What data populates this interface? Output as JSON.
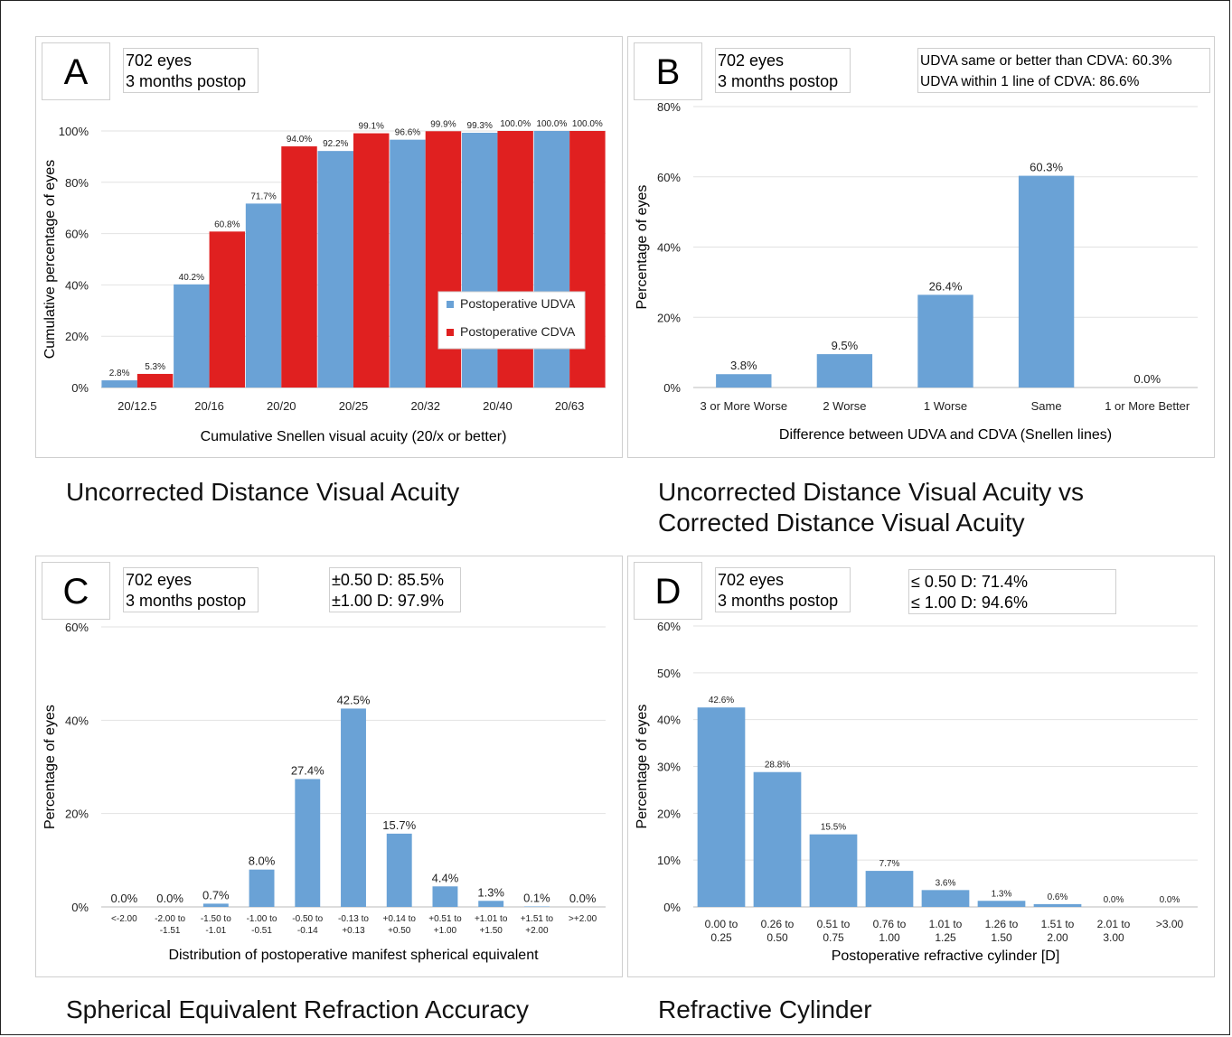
{
  "chart_data": [
    {
      "panel": "A",
      "type": "bar",
      "caption": "Uncorrected Distance Visual Acuity",
      "info": [
        "702 eyes",
        "3 months postop"
      ],
      "xlabel": "Cumulative Snellen visual acuity (20/x or better)",
      "ylabel": "Cumulative percentage of eyes",
      "ylim": [
        0,
        100
      ],
      "yticks": [
        "0%",
        "20%",
        "40%",
        "60%",
        "80%",
        "100%"
      ],
      "categories": [
        "20/12.5",
        "20/16",
        "20/20",
        "20/25",
        "20/32",
        "20/40",
        "20/63"
      ],
      "series": [
        {
          "name": "Postoperative UDVA",
          "color": "#6aa2d6",
          "values": [
            2.8,
            40.2,
            71.7,
            92.2,
            96.6,
            99.3,
            100.0
          ],
          "labels": [
            "2.8%",
            "40.2%",
            "71.7%",
            "92.2%",
            "96.6%",
            "99.3%",
            "100.0%"
          ]
        },
        {
          "name": "Postoperative CDVA",
          "color": "#e02020",
          "values": [
            5.3,
            60.8,
            94.0,
            99.1,
            99.9,
            100.0,
            100.0
          ],
          "labels": [
            "5.3%",
            "60.8%",
            "94.0%",
            "99.1%",
            "99.9%",
            "100.0%",
            "100.0%"
          ]
        }
      ],
      "legend_position": "lower-right",
      "grid": true
    },
    {
      "panel": "B",
      "type": "bar",
      "caption": "Uncorrected Distance Visual Acuity vs Corrected Distance Visual Acuity",
      "info": [
        "702 eyes",
        "3 months postop"
      ],
      "notes": [
        "UDVA same or better than CDVA: 60.3%",
        "UDVA within 1 line of CDVA: 86.6%"
      ],
      "xlabel": "Difference between UDVA and CDVA (Snellen lines)",
      "ylabel": "Percentage of eyes",
      "ylim": [
        0,
        80
      ],
      "yticks": [
        "0%",
        "20%",
        "40%",
        "60%",
        "80%"
      ],
      "categories": [
        "3 or More Worse",
        "2 Worse",
        "1 Worse",
        "Same",
        "1 or More Better"
      ],
      "values": [
        3.8,
        9.5,
        26.4,
        60.3,
        0.0
      ],
      "labels": [
        "3.8%",
        "9.5%",
        "26.4%",
        "60.3%",
        "0.0%"
      ],
      "color": "#6aa2d6",
      "grid": true
    },
    {
      "panel": "C",
      "type": "bar",
      "caption": "Spherical Equivalent Refraction Accuracy",
      "info": [
        "702 eyes",
        "3 months postop"
      ],
      "notes": [
        "±0.50 D: 85.5%",
        "±1.00 D: 97.9%"
      ],
      "xlabel": "Distribution of postoperative manifest spherical equivalent",
      "ylabel": "Percentage of eyes",
      "ylim": [
        0,
        60
      ],
      "yticks": [
        "0%",
        "20%",
        "40%",
        "60%"
      ],
      "categories": [
        [
          "<-2.00"
        ],
        [
          "-2.00 to",
          "-1.51"
        ],
        [
          "-1.50 to",
          "-1.01"
        ],
        [
          "-1.00 to",
          "-0.51"
        ],
        [
          "-0.50 to",
          "-0.14"
        ],
        [
          "-0.13 to",
          "+0.13"
        ],
        [
          "+0.14 to",
          "+0.50"
        ],
        [
          "+0.51 to",
          "+1.00"
        ],
        [
          "+1.01 to",
          "+1.50"
        ],
        [
          "+1.51 to",
          "+2.00"
        ],
        [
          ">+2.00"
        ]
      ],
      "values": [
        0.0,
        0.0,
        0.7,
        8.0,
        27.4,
        42.5,
        15.7,
        4.4,
        1.3,
        0.1,
        0.0
      ],
      "labels": [
        "0.0%",
        "0.0%",
        "0.7%",
        "8.0%",
        "27.4%",
        "42.5%",
        "15.7%",
        "4.4%",
        "1.3%",
        "0.1%",
        "0.0%"
      ],
      "color": "#6aa2d6",
      "grid": true
    },
    {
      "panel": "D",
      "type": "bar",
      "caption": "Refractive Cylinder",
      "info": [
        "702 eyes",
        "3 months postop"
      ],
      "notes": [
        "≤ 0.50 D: 71.4%",
        "≤ 1.00 D: 94.6%"
      ],
      "xlabel": "Postoperative refractive cylinder [D]",
      "ylabel": "Percentage of eyes",
      "ylim": [
        0,
        60
      ],
      "yticks": [
        "0%",
        "10%",
        "20%",
        "30%",
        "40%",
        "50%",
        "60%"
      ],
      "categories": [
        [
          "0.00 to",
          "0.25"
        ],
        [
          "0.26 to",
          "0.50"
        ],
        [
          "0.51 to",
          "0.75"
        ],
        [
          "0.76 to",
          "1.00"
        ],
        [
          "1.01 to",
          "1.25"
        ],
        [
          "1.26 to",
          "1.50"
        ],
        [
          "1.51 to",
          "2.00"
        ],
        [
          "2.01 to",
          "3.00"
        ],
        [
          ">3.00"
        ]
      ],
      "values": [
        42.6,
        28.8,
        15.5,
        7.7,
        3.6,
        1.3,
        0.6,
        0.0,
        0.0
      ],
      "labels": [
        "42.6%",
        "28.8%",
        "15.5%",
        "7.7%",
        "3.6%",
        "1.3%",
        "0.6%",
        "0.0%",
        "0.0%"
      ],
      "color": "#6aa2d6",
      "grid": true
    }
  ]
}
